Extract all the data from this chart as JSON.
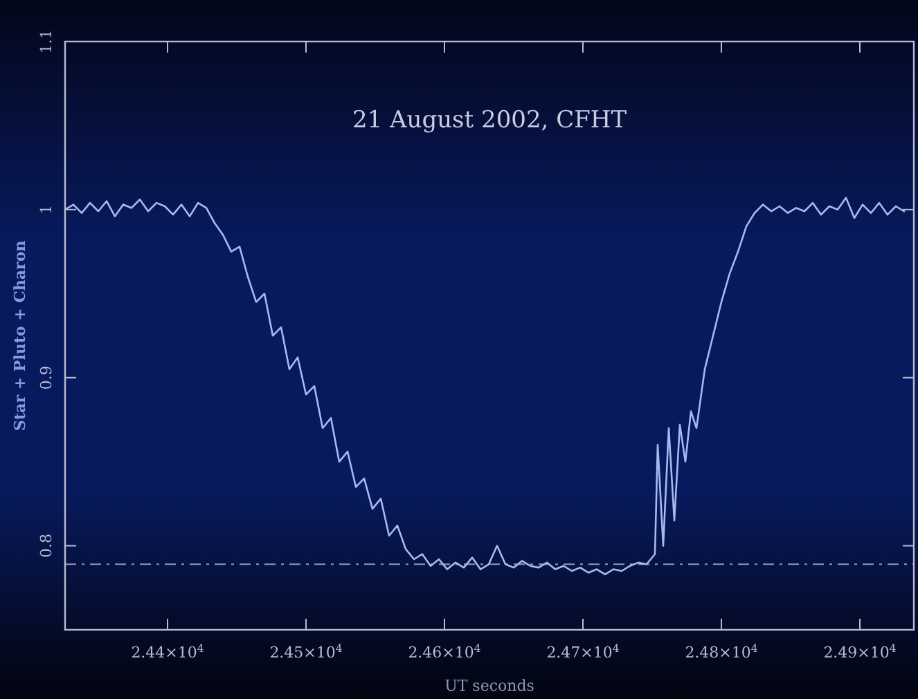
{
  "chart_data": {
    "type": "line",
    "title": "21 August 2002, CFHT",
    "xlabel": "UT seconds",
    "ylabel": "Star + Pluto + Charon",
    "xlim": [
      24326,
      24939
    ],
    "ylim": [
      0.75,
      1.1
    ],
    "xticks": [
      {
        "value": 24400,
        "label": "2.44×10$^{4}$"
      },
      {
        "value": 24500,
        "label": "2.45×10$^{4}$"
      },
      {
        "value": 24600,
        "label": "2.46×10$^{4}$"
      },
      {
        "value": 24700,
        "label": "2.47×10$^{4}$"
      },
      {
        "value": 24800,
        "label": "2.48×10$^{4}$"
      },
      {
        "value": 24900,
        "label": "2.49×10$^{4}$"
      }
    ],
    "yticks": [
      0.8,
      0.9,
      1,
      1.1
    ],
    "ref_lines": [
      {
        "axis": "y",
        "value": 0.789,
        "color": "#9098b8",
        "line_style": "dashed"
      }
    ],
    "series": [
      {
        "color": "#a8b8f0",
        "x": [
          24326,
          24332,
          24338,
          24344,
          24350,
          24356,
          24362,
          24368,
          24374,
          24380,
          24386,
          24392,
          24398,
          24404,
          24410,
          24416,
          24422,
          24428,
          24434,
          24440,
          24446,
          24452,
          24458,
          24464,
          24470,
          24476,
          24482,
          24488,
          24494,
          24500,
          24506,
          24512,
          24518,
          24524,
          24530,
          24536,
          24542,
          24548,
          24554,
          24560,
          24566,
          24572,
          24578,
          24584,
          24590,
          24596,
          24602,
          24608,
          24614,
          24620,
          24626,
          24632,
          24638,
          24644,
          24650,
          24656,
          24662,
          24668,
          24674,
          24680,
          24686,
          24692,
          24698,
          24704,
          24710,
          24716,
          24722,
          24728,
          24734,
          24740,
          24746,
          24752,
          24754,
          24758,
          24762,
          24766,
          24770,
          24774,
          24778,
          24782,
          24788,
          24794,
          24800,
          24806,
          24812,
          24818,
          24824,
          24830,
          24836,
          24842,
          24848,
          24854,
          24860,
          24866,
          24872,
          24878,
          24884,
          24890,
          24896,
          24902,
          24908,
          24914,
          24920,
          24926,
          24932
        ],
        "values": [
          1.0,
          1.003,
          0.998,
          1.004,
          0.999,
          1.005,
          0.996,
          1.003,
          1.001,
          1.006,
          0.999,
          1.004,
          1.002,
          0.997,
          1.003,
          0.996,
          1.004,
          1.001,
          0.992,
          0.985,
          0.975,
          0.978,
          0.96,
          0.945,
          0.95,
          0.925,
          0.93,
          0.905,
          0.912,
          0.89,
          0.895,
          0.87,
          0.876,
          0.85,
          0.856,
          0.835,
          0.84,
          0.822,
          0.828,
          0.806,
          0.812,
          0.798,
          0.792,
          0.795,
          0.788,
          0.792,
          0.786,
          0.79,
          0.787,
          0.793,
          0.786,
          0.789,
          0.8,
          0.789,
          0.787,
          0.791,
          0.788,
          0.787,
          0.79,
          0.786,
          0.788,
          0.785,
          0.787,
          0.784,
          0.786,
          0.783,
          0.786,
          0.785,
          0.788,
          0.79,
          0.789,
          0.795,
          0.86,
          0.8,
          0.87,
          0.815,
          0.872,
          0.85,
          0.88,
          0.87,
          0.905,
          0.925,
          0.945,
          0.962,
          0.975,
          0.99,
          0.998,
          1.003,
          0.999,
          1.002,
          0.998,
          1.001,
          0.999,
          1.004,
          0.997,
          1.002,
          1.0,
          1.007,
          0.995,
          1.003,
          0.998,
          1.004,
          0.997,
          1.002,
          0.999
        ]
      }
    ]
  }
}
